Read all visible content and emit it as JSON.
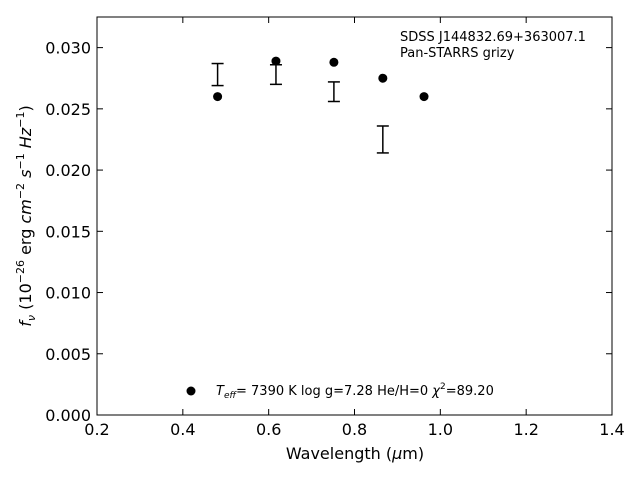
{
  "chart_data": {
    "type": "scatter",
    "title": "",
    "xlabel": "Wavelength (μm)",
    "ylabel": "f_ν (10^-26 erg cm^-2 s^-1 Hz^-1)",
    "xlim": [
      0.2,
      1.4
    ],
    "ylim": [
      0.0,
      0.0325
    ],
    "x_ticks": [
      "0.2",
      "0.4",
      "0.6",
      "0.8",
      "1.0",
      "1.2",
      "1.4"
    ],
    "y_ticks": [
      "0.000",
      "0.005",
      "0.010",
      "0.015",
      "0.020",
      "0.025",
      "0.030"
    ],
    "grid": false,
    "annotation": {
      "object": "SDSS J144832.69+363007.1",
      "survey": "Pan-STARRS grizy"
    },
    "legend": {
      "placement": "bottom-center",
      "model_label": "T_eff=  7390 K  log g=7.28  He/H=0  χ²=89.20"
    },
    "series": [
      {
        "kind": "model",
        "x": [
          0.481,
          0.617,
          0.752,
          0.866,
          0.962
        ],
        "y": [
          0.026,
          0.0289,
          0.0288,
          0.0275,
          0.026
        ]
      },
      {
        "kind": "observed",
        "x": [
          0.481,
          0.617,
          0.752,
          0.866
        ],
        "y": [
          0.0278,
          0.0278,
          0.0264,
          0.0225
        ],
        "yerr": [
          0.0009,
          0.0008,
          0.0008,
          0.0011
        ]
      }
    ],
    "colors": {
      "marker": "#000000",
      "axis": "#000000"
    }
  }
}
